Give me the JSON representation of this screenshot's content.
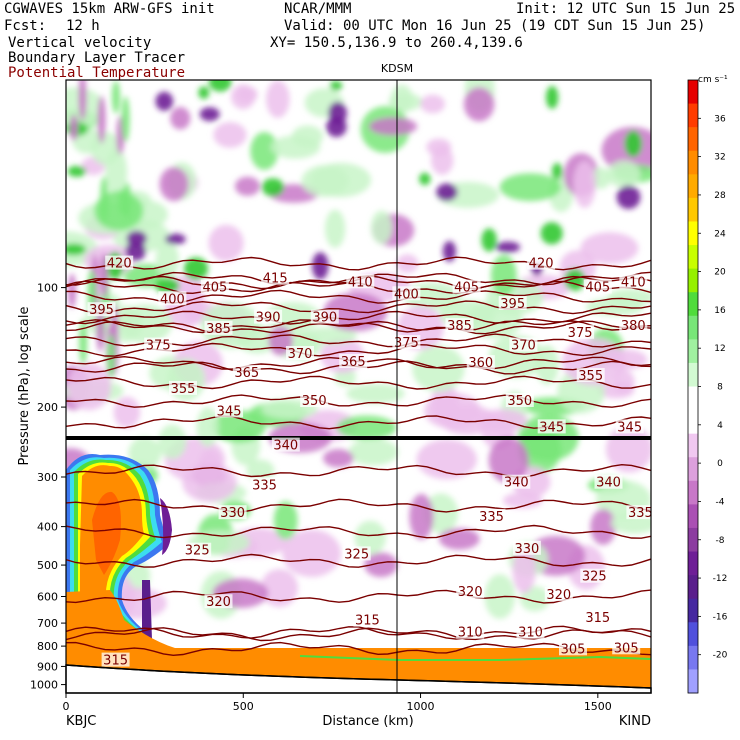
{
  "header": {
    "model": "CGWAVES 15km ARW-GFS init",
    "agency": "NCAR/MMM",
    "init": "Init: 12 UTC Sun 15 Jun 25",
    "fcst_label": "Fcst:",
    "fcst_value": "12 h",
    "valid": "Valid: 00 UTC Mon 16 Jun 25 (19 CDT Sun 15 Jun 25)",
    "field1": "Vertical velocity",
    "field2": "Boundary Layer Tracer",
    "field3": "Potential Temperature",
    "xy": "XY= 150.5,136.9 to 260.4,139.6"
  },
  "colors": {
    "theta": "#7a0000",
    "terrain": "#ff8c00",
    "up_light": "#c8f5c8",
    "up_mid": "#78e678",
    "up_dark": "#32c832",
    "down_light": "#ecc0ec",
    "down_mid": "#c878c8",
    "down_dark": "#6e1e96"
  },
  "chart_data": {
    "type": "heatmap",
    "ylabel": "Pressure (hPa), log scale",
    "xlabel": "Distance (km)",
    "y_log_scale": true,
    "x_range": [
      0,
      1650
    ],
    "y_range": [
      1050,
      30
    ],
    "x_ticks": [
      0,
      500,
      1000,
      1500
    ],
    "y_ticks": [
      100,
      200,
      300,
      400,
      500,
      600,
      700,
      800,
      900,
      1000
    ],
    "station_left": "KBJC",
    "station_right": "KIND",
    "station_marker": "KDSM",
    "station_marker_x": 935,
    "colorbar": {
      "unit": "cm s⁻¹",
      "ticks": [
        36,
        32,
        28,
        24,
        20,
        16,
        12,
        8,
        4,
        0,
        -4,
        -8,
        -12,
        -16,
        -20
      ],
      "colors": [
        "#e60000",
        "#ff3c00",
        "#ff6400",
        "#ff8c00",
        "#ffaa00",
        "#ffc800",
        "#ffff00",
        "#c8ff00",
        "#96f000",
        "#50dc3c",
        "#78e678",
        "#a0f0a0",
        "#d2fad2",
        "#ffffff",
        "#ffffff",
        "#f0c8f0",
        "#dca0dc",
        "#c878c8",
        "#aa50b4",
        "#8c3ca0",
        "#6e1e96",
        "#5a1e8c",
        "#4628a0",
        "#5050dc",
        "#7878f0",
        "#a0a0ff"
      ]
    },
    "theta_labels": [
      {
        "v": "420",
        "x": 150,
        "p": 87
      },
      {
        "v": "420",
        "x": 1340,
        "p": 87
      },
      {
        "v": "415",
        "x": 590,
        "p": 95
      },
      {
        "v": "410",
        "x": 830,
        "p": 97
      },
      {
        "v": "410",
        "x": 1600,
        "p": 97
      },
      {
        "v": "405",
        "x": 420,
        "p": 100
      },
      {
        "v": "405",
        "x": 1130,
        "p": 100
      },
      {
        "v": "405",
        "x": 1500,
        "p": 100
      },
      {
        "v": "400",
        "x": 300,
        "p": 107
      },
      {
        "v": "400",
        "x": 960,
        "p": 104
      },
      {
        "v": "395",
        "x": 100,
        "p": 114
      },
      {
        "v": "395",
        "x": 1260,
        "p": 110
      },
      {
        "v": "390",
        "x": 570,
        "p": 119
      },
      {
        "v": "390",
        "x": 730,
        "p": 119
      },
      {
        "v": "385",
        "x": 430,
        "p": 127
      },
      {
        "v": "385",
        "x": 1110,
        "p": 125
      },
      {
        "v": "380",
        "x": 1600,
        "p": 125
      },
      {
        "v": "375",
        "x": 260,
        "p": 140
      },
      {
        "v": "375",
        "x": 960,
        "p": 138
      },
      {
        "v": "375",
        "x": 1450,
        "p": 130
      },
      {
        "v": "370",
        "x": 660,
        "p": 147
      },
      {
        "v": "370",
        "x": 1290,
        "p": 140
      },
      {
        "v": "365",
        "x": 510,
        "p": 164
      },
      {
        "v": "365",
        "x": 810,
        "p": 154
      },
      {
        "v": "360",
        "x": 1170,
        "p": 155
      },
      {
        "v": "355",
        "x": 330,
        "p": 180
      },
      {
        "v": "355",
        "x": 1480,
        "p": 167
      },
      {
        "v": "350",
        "x": 700,
        "p": 193
      },
      {
        "v": "350",
        "x": 1280,
        "p": 193
      },
      {
        "v": "345",
        "x": 460,
        "p": 205
      },
      {
        "v": "345",
        "x": 1370,
        "p": 225
      },
      {
        "v": "345",
        "x": 1590,
        "p": 225
      },
      {
        "v": "340",
        "x": 620,
        "p": 250
      },
      {
        "v": "340",
        "x": 1270,
        "p": 310
      },
      {
        "v": "340",
        "x": 1530,
        "p": 310
      },
      {
        "v": "335",
        "x": 560,
        "p": 315
      },
      {
        "v": "335",
        "x": 1200,
        "p": 378
      },
      {
        "v": "335",
        "x": 1620,
        "p": 370
      },
      {
        "v": "330",
        "x": 470,
        "p": 370
      },
      {
        "v": "330",
        "x": 1300,
        "p": 455
      },
      {
        "v": "325",
        "x": 370,
        "p": 460
      },
      {
        "v": "325",
        "x": 820,
        "p": 470
      },
      {
        "v": "325",
        "x": 1490,
        "p": 535
      },
      {
        "v": "320",
        "x": 430,
        "p": 620
      },
      {
        "v": "320",
        "x": 1140,
        "p": 585
      },
      {
        "v": "320",
        "x": 1390,
        "p": 595
      },
      {
        "v": "315",
        "x": 850,
        "p": 690
      },
      {
        "v": "315",
        "x": 1500,
        "p": 680
      },
      {
        "v": "315",
        "x": 140,
        "p": 870
      },
      {
        "v": "310",
        "x": 1140,
        "p": 740
      },
      {
        "v": "310",
        "x": 1310,
        "p": 740
      },
      {
        "v": "305",
        "x": 1430,
        "p": 815
      },
      {
        "v": "305",
        "x": 1580,
        "p": 810
      }
    ]
  }
}
